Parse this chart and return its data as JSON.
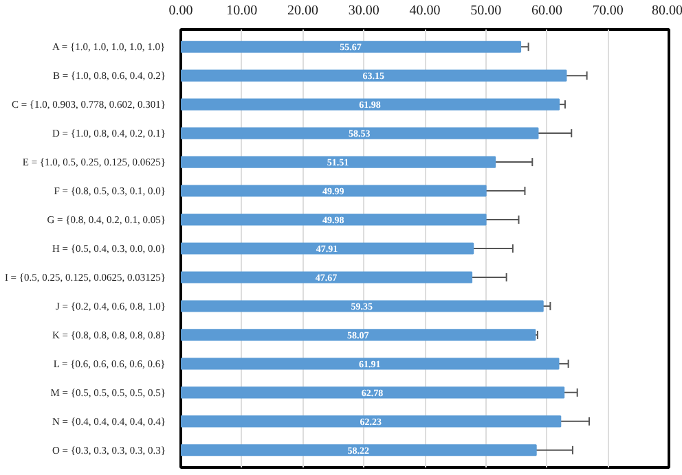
{
  "chart_data": {
    "type": "bar",
    "orientation": "horizontal",
    "categories": [
      "A = {1.0, 1.0, 1.0, 1.0, 1.0}",
      "B = {1.0, 0.8, 0.6, 0.4, 0.2}",
      "C = {1.0, 0.903, 0.778, 0.602, 0.301}",
      "D = {1.0, 0.8, 0.4, 0.2, 0.1}",
      "E = {1.0, 0.5, 0.25, 0.125, 0.0625}",
      "F = {0.8, 0.5, 0.3, 0.1, 0.0}",
      "G = {0.8, 0.4, 0.2, 0.1, 0.05}",
      "H = {0.5, 0.4, 0.3, 0.0, 0.0}",
      "I = {0.5, 0.25, 0.125, 0.0625, 0.03125}",
      "J = {0.2, 0.4, 0.6, 0.8, 1.0}",
      "K = {0.8, 0.8, 0.8, 0.8, 0.8}",
      "L = {0.6, 0.6, 0.6, 0.6, 0.6}",
      "M = {0.5, 0.5, 0.5, 0.5, 0.5}",
      "N = {0.4, 0.4, 0.4, 0.4, 0.4}",
      "O = {0.3, 0.3, 0.3, 0.3, 0.3}"
    ],
    "values": [
      55.67,
      63.15,
      61.98,
      58.53,
      51.51,
      49.99,
      49.98,
      47.91,
      47.67,
      59.35,
      58.07,
      61.91,
      62.78,
      62.23,
      58.22
    ],
    "errors": [
      1.3,
      3.4,
      1.0,
      5.5,
      6.1,
      6.4,
      5.4,
      6.5,
      5.7,
      1.2,
      0.4,
      1.6,
      2.2,
      4.7,
      6.0
    ],
    "color": "#5b9bd5",
    "data_labels": true,
    "xlim": [
      0,
      80
    ],
    "xticks": [
      {
        "value": 0,
        "label": "0.00"
      },
      {
        "value": 10,
        "label": "10.00"
      },
      {
        "value": 20,
        "label": "20.00"
      },
      {
        "value": 30,
        "label": "30.00"
      },
      {
        "value": 40,
        "label": "40.00"
      },
      {
        "value": 50,
        "label": "50.00"
      },
      {
        "value": 60,
        "label": "60.00"
      },
      {
        "value": 70,
        "label": "70.00"
      },
      {
        "value": 80,
        "label": "80.00"
      }
    ],
    "grid": "x"
  }
}
